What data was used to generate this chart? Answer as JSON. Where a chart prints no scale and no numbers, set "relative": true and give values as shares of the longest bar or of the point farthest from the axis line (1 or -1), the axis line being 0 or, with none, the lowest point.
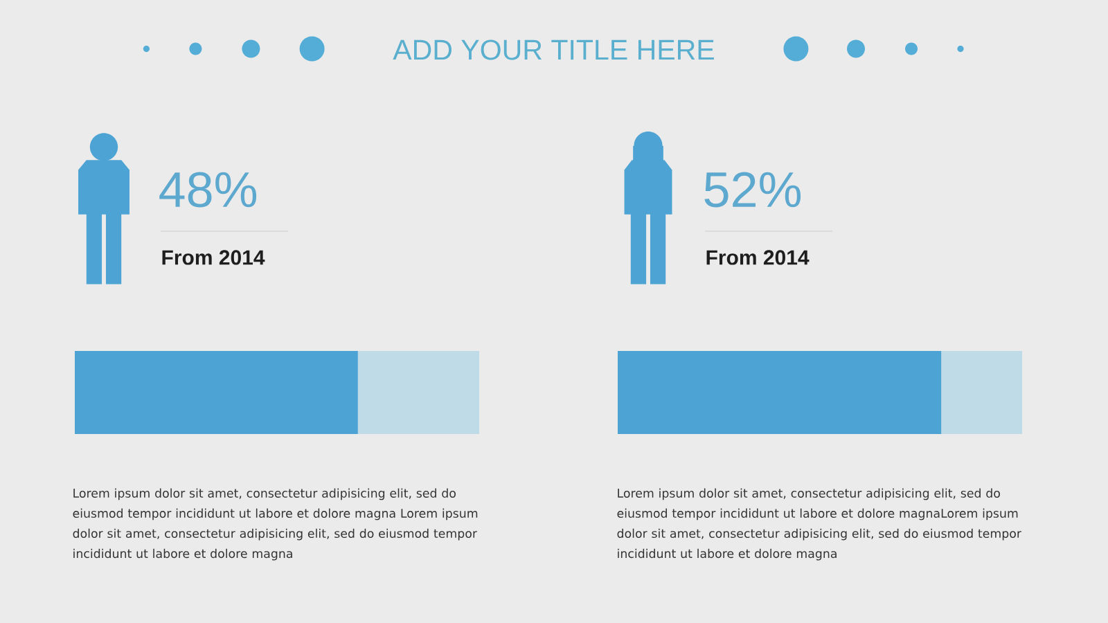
{
  "chart_data": [
    {
      "type": "bar",
      "orientation": "horizontal",
      "stacked": true,
      "relative": true,
      "title": "ADD YOUR TITLE HERE",
      "subtitle": "From 2014",
      "categories": [
        null
      ],
      "series": [
        {
          "color": "#4ca3d4",
          "values": [
            0.7
          ]
        },
        {
          "color": "#bfdbe7",
          "values": [
            0.3
          ]
        }
      ],
      "annotations": [
        "48%",
        "Lorem ipsum dolor sit amet, consectetur adipisicing elit, sed do eiusmod tempor incididunt ut labore et dolore magna Lorem ipsum dolor sit amet, consectetur adipisicing elit, sed do eiusmod tempor incididunt ut labore et dolore magna"
      ]
    },
    {
      "type": "bar",
      "orientation": "horizontal",
      "stacked": true,
      "relative": true,
      "subtitle": "From 2014",
      "categories": [
        null
      ],
      "series": [
        {
          "color": "#4ca3d4",
          "values": [
            0.8
          ]
        },
        {
          "color": "#bfdbe7",
          "values": [
            0.2
          ]
        }
      ],
      "annotations": [
        "52%",
        "Lorem ipsum dolor sit amet, consectetur adipisicing elit, sed do eiusmod tempor incididunt ut labore et dolore magnaLorem ipsum dolor sit amet, consectetur adipisicing elit, sed do eiusmod tempor incididunt ut labore et dolore magna"
      ]
    }
  ]
}
